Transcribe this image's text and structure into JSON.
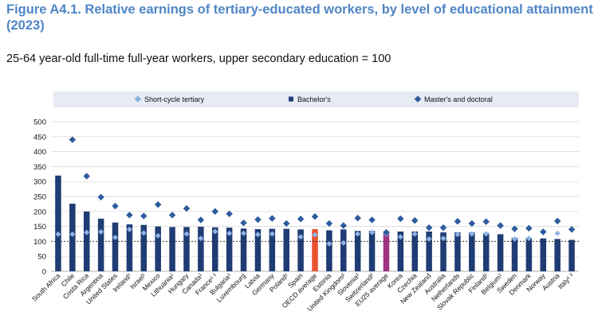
{
  "title": "Figure A4.1. Relative earnings of tertiary-educated workers, by level of educational attainment (2023)",
  "subtitle": "25-64 year-old full-time full-year workers, upper secondary education = 100",
  "colors": {
    "bachelor": "#1f3c74",
    "short_cycle": "#8db3e2",
    "masters": "#2e5c9e",
    "oecd_highlight": "#e8532f",
    "eu_highlight": "#a0337f",
    "legend_bg": "#e6ebf4",
    "grid": "#d6d6d6",
    "reference_line": "#333333"
  },
  "chart_data": {
    "type": "bar",
    "title": "Figure A4.1. Relative earnings of tertiary-educated workers, by level of educational attainment (2023)",
    "subtitle": "25-64 year-old full-time full-year workers, upper secondary education = 100",
    "ylim": [
      0,
      500
    ],
    "yticks": [
      0,
      50,
      100,
      150,
      200,
      250,
      300,
      350,
      400,
      450,
      500
    ],
    "reference_line": 100,
    "grid": true,
    "legend_position": "top",
    "legend": [
      {
        "label": "Short-cycle tertiary",
        "marker": "diamond-light"
      },
      {
        "label": "Bachelor's",
        "marker": "square-dark"
      },
      {
        "label": "Master's and doctoral",
        "marker": "diamond-dark"
      }
    ],
    "categories": [
      "South Africa",
      "Chile",
      "Costa Rica",
      "Argentina",
      "United States",
      "Ireland¹",
      "Israel¹",
      "Mexico",
      "Lithuania¹",
      "Hungary",
      "Canada¹",
      "France¹ ²",
      "Bulgaria¹",
      "Luxembourg",
      "Latvia",
      "Germany",
      "Poland¹",
      "Spain",
      "OECD average",
      "Estonia",
      "United Kingdom²",
      "Slovenia²",
      "Switzerland²",
      "EU25 average",
      "Korea",
      "Czechia",
      "New Zealand",
      "Australia",
      "Netherlands",
      "Slovak Republic",
      "Finland¹",
      "Belgium¹",
      "Sweden",
      "Denmark",
      "Norway",
      "Austria",
      "Italy¹ ²"
    ],
    "highlights": {
      "OECD average": "oecd_highlight",
      "EU25 average": "eu_highlight"
    },
    "series": [
      {
        "name": "Bachelor's",
        "type": "bar",
        "values": [
          320,
          226,
          200,
          176,
          163,
          157,
          155,
          150,
          148,
          148,
          149,
          147,
          146,
          143,
          141,
          142,
          142,
          140,
          141,
          137,
          140,
          135,
          135,
          134,
          133,
          133,
          133,
          130,
          130,
          130,
          128,
          124,
          112,
          112,
          110,
          108,
          105
        ]
      },
      {
        "name": "Short-cycle tertiary",
        "type": "marker",
        "values": [
          124,
          124,
          130,
          132,
          113,
          140,
          128,
          119,
          null,
          125,
          110,
          133,
          127,
          127,
          123,
          125,
          null,
          115,
          122,
          92,
          95,
          125,
          130,
          125,
          115,
          125,
          108,
          110,
          123,
          125,
          125,
          null,
          108,
          110,
          null,
          127,
          null
        ]
      },
      {
        "name": "Master's and doctoral",
        "type": "marker",
        "values": [
          null,
          440,
          318,
          248,
          218,
          188,
          185,
          223,
          188,
          210,
          172,
          200,
          192,
          162,
          173,
          177,
          160,
          175,
          183,
          160,
          153,
          178,
          172,
          130,
          176,
          170,
          146,
          146,
          167,
          160,
          166,
          153,
          142,
          144,
          132,
          168,
          140
        ]
      }
    ]
  }
}
